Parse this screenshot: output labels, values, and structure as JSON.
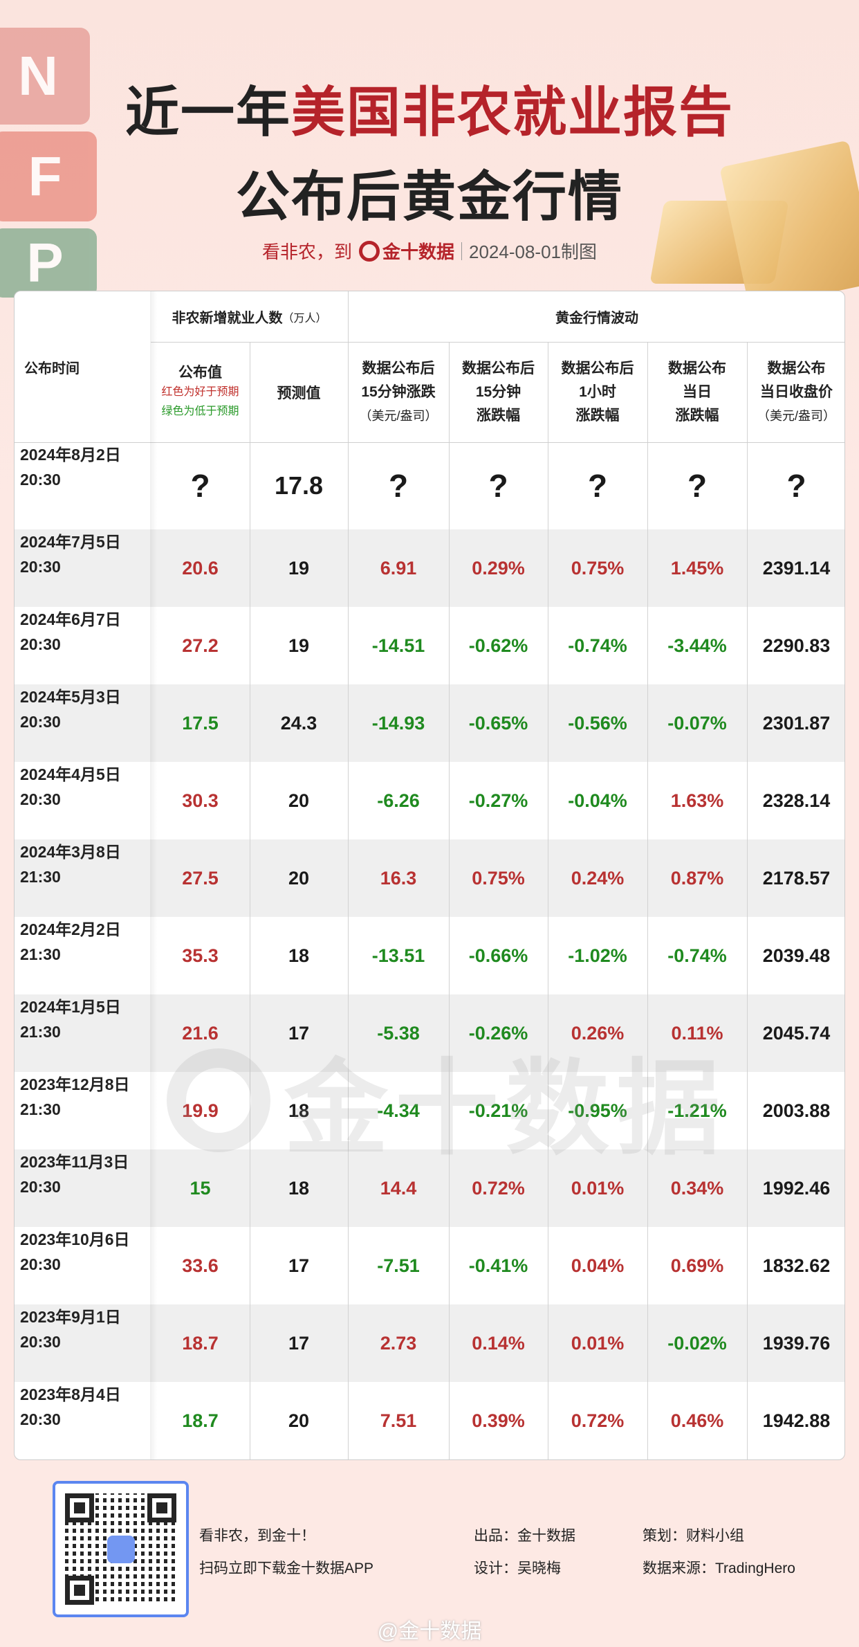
{
  "header": {
    "title_prefix": "近一年",
    "title_highlight": "美国非农就业报告",
    "title_line2": "公布后黄金行情",
    "subtitle_lead": "看非农，到",
    "brand": "金十数据",
    "date_made": "2024-08-01制图",
    "deco_letters": [
      "N",
      "F",
      "P"
    ]
  },
  "table": {
    "col_time": "公布时间",
    "group_nfp": "非农新增就业人数",
    "group_nfp_unit": "（万人）",
    "group_gold": "黄金行情波动",
    "actual_label": "公布值",
    "legend_red": "红色为好于预期",
    "legend_green": "绿色为低于预期",
    "forecast_label": "预测值",
    "h_15m_move": [
      "数据公布后",
      "15分钟涨跌",
      "（美元/盎司）"
    ],
    "h_15m_pct": [
      "数据公布后",
      "15分钟",
      "涨跌幅"
    ],
    "h_1h_pct": [
      "数据公布后",
      "1小时",
      "涨跌幅"
    ],
    "h_day_pct": [
      "数据公布",
      "当日",
      "涨跌幅"
    ],
    "h_close": [
      "数据公布",
      "当日收盘价",
      "（美元/盎司）"
    ],
    "colors": {
      "red": "#b83232",
      "green": "#1f8a1f",
      "black": "#1a1a1a"
    },
    "rows": [
      {
        "date": "2024年8月2日",
        "time": "20:30",
        "actual": "?",
        "actual_color": "black",
        "forecast": "17.8",
        "m15": "?",
        "p15": "?",
        "p1h": "?",
        "pday": "?",
        "close": "?"
      },
      {
        "date": "2024年7月5日",
        "time": "20:30",
        "actual": "20.6",
        "actual_color": "red",
        "forecast": "19",
        "m15": "6.91",
        "p15": "0.29%",
        "p1h": "0.75%",
        "pday": "1.45%",
        "close": "2391.14"
      },
      {
        "date": "2024年6月7日",
        "time": "20:30",
        "actual": "27.2",
        "actual_color": "red",
        "forecast": "19",
        "m15": "-14.51",
        "p15": "-0.62%",
        "p1h": "-0.74%",
        "pday": "-3.44%",
        "close": "2290.83"
      },
      {
        "date": "2024年5月3日",
        "time": "20:30",
        "actual": "17.5",
        "actual_color": "green",
        "forecast": "24.3",
        "m15": "-14.93",
        "p15": "-0.65%",
        "p1h": "-0.56%",
        "pday": "-0.07%",
        "close": "2301.87"
      },
      {
        "date": "2024年4月5日",
        "time": "20:30",
        "actual": "30.3",
        "actual_color": "red",
        "forecast": "20",
        "m15": "-6.26",
        "p15": "-0.27%",
        "p1h": "-0.04%",
        "pday": "1.63%",
        "close": "2328.14"
      },
      {
        "date": "2024年3月8日",
        "time": "21:30",
        "actual": "27.5",
        "actual_color": "red",
        "forecast": "20",
        "m15": "16.3",
        "p15": "0.75%",
        "p1h": "0.24%",
        "pday": "0.87%",
        "close": "2178.57"
      },
      {
        "date": "2024年2月2日",
        "time": "21:30",
        "actual": "35.3",
        "actual_color": "red",
        "forecast": "18",
        "m15": "-13.51",
        "p15": "-0.66%",
        "p1h": "-1.02%",
        "pday": "-0.74%",
        "close": "2039.48"
      },
      {
        "date": "2024年1月5日",
        "time": "21:30",
        "actual": "21.6",
        "actual_color": "red",
        "forecast": "17",
        "m15": "-5.38",
        "p15": "-0.26%",
        "p1h": "0.26%",
        "pday": "0.11%",
        "close": "2045.74"
      },
      {
        "date": "2023年12月8日",
        "time": "21:30",
        "actual": "19.9",
        "actual_color": "red",
        "forecast": "18",
        "m15": "-4.34",
        "p15": "-0.21%",
        "p1h": "-0.95%",
        "pday": "-1.21%",
        "close": "2003.88"
      },
      {
        "date": "2023年11月3日",
        "time": "20:30",
        "actual": "15",
        "actual_color": "green",
        "forecast": "18",
        "m15": "14.4",
        "p15": "0.72%",
        "p1h": "0.01%",
        "pday": "0.34%",
        "close": "1992.46"
      },
      {
        "date": "2023年10月6日",
        "time": "20:30",
        "actual": "33.6",
        "actual_color": "red",
        "forecast": "17",
        "m15": "-7.51",
        "p15": "-0.41%",
        "p1h": "0.04%",
        "pday": "0.69%",
        "close": "1832.62"
      },
      {
        "date": "2023年9月1日",
        "time": "20:30",
        "actual": "18.7",
        "actual_color": "red",
        "forecast": "17",
        "m15": "2.73",
        "p15": "0.14%",
        "p1h": "0.01%",
        "pday": "-0.02%",
        "close": "1939.76"
      },
      {
        "date": "2023年8月4日",
        "time": "20:30",
        "actual": "18.7",
        "actual_color": "green",
        "forecast": "20",
        "m15": "7.51",
        "p15": "0.39%",
        "p1h": "0.72%",
        "pday": "0.46%",
        "close": "1942.88"
      }
    ],
    "watermark": "金十数据"
  },
  "footer": {
    "line1": "看非农，到金十！",
    "line2": "扫码立即下载金十数据APP",
    "producer": "出品：金十数据",
    "designer": "设计：吴晓梅",
    "planner": "策划：财料小组",
    "source": "数据来源：TradingHero",
    "weibo": "@金十数据"
  }
}
